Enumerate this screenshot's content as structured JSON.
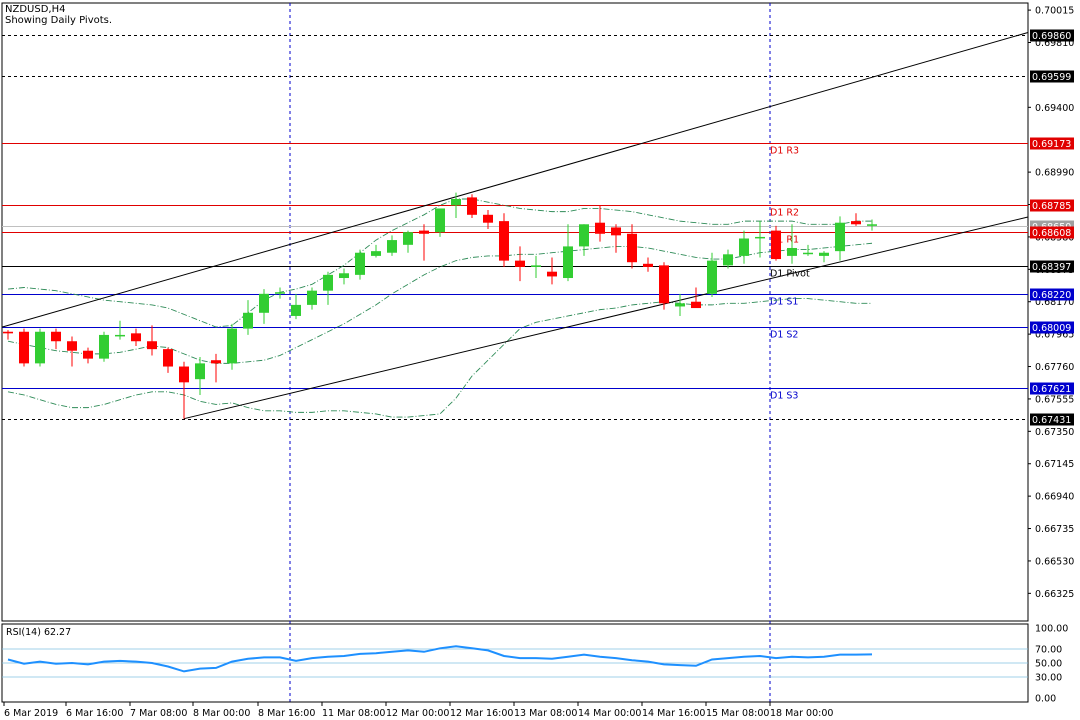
{
  "header": {
    "symbol_line": "NZDUSD,H4",
    "subtitle": "Showing Daily Pivots."
  },
  "rsi_panel": {
    "label": "RSI(14) 62.27",
    "period": 14,
    "value": 62.27,
    "levels": [
      70,
      50,
      30
    ],
    "axis_ticks": [
      "100.00",
      "70.00",
      "50.00",
      "30.00",
      "0.00"
    ],
    "color": "#1e90ff"
  },
  "colors": {
    "bull": "#32cd32",
    "bear": "#ff0000",
    "pivot_resistance": "#e00000",
    "pivot_support": "#0000cd",
    "pivot": "#000000",
    "session_separator": "#0000cd",
    "bollinger": "#2e8b57",
    "grid_text": "#000000"
  },
  "chart_data": {
    "type": "candlestick",
    "symbol": "NZDUSD",
    "timeframe": "H4",
    "ylim": [
      0.6615,
      0.7006
    ],
    "y_ticks": [
      "0.70015",
      "0.69810",
      "0.69400",
      "0.68990",
      "0.68785",
      "0.68580",
      "0.68375",
      "0.68170",
      "0.67965",
      "0.67760",
      "0.67555",
      "0.67350",
      "0.67145",
      "0.66940",
      "0.66735",
      "0.66530",
      "0.66325"
    ],
    "x_ticks": [
      "6 Mar 2019",
      "6 Mar 16:00",
      "7 Mar 08:00",
      "8 Mar 00:00",
      "8 Mar 16:00",
      "11 Mar 08:00",
      "12 Mar 00:00",
      "12 Mar 16:00",
      "13 Mar 08:00",
      "14 Mar 00:00",
      "14 Mar 16:00",
      "15 Mar 08:00",
      "18 Mar 00:00"
    ],
    "candles": [
      [
        0.6798,
        0.6799,
        0.6793,
        0.6797
      ],
      [
        0.6798,
        0.68,
        0.6776,
        0.6778
      ],
      [
        0.6778,
        0.68,
        0.6776,
        0.6798
      ],
      [
        0.6798,
        0.68,
        0.6787,
        0.6792
      ],
      [
        0.6792,
        0.6795,
        0.6776,
        0.6786
      ],
      [
        0.6786,
        0.6788,
        0.6778,
        0.6781
      ],
      [
        0.6781,
        0.6798,
        0.6779,
        0.6796
      ],
      [
        0.6796,
        0.6805,
        0.6793,
        0.6796
      ],
      [
        0.6797,
        0.68,
        0.6789,
        0.6792
      ],
      [
        0.6792,
        0.6802,
        0.6783,
        0.6787
      ],
      [
        0.6787,
        0.6788,
        0.6772,
        0.6776
      ],
      [
        0.6776,
        0.6779,
        0.6743,
        0.6766
      ],
      [
        0.6768,
        0.6782,
        0.6758,
        0.6778
      ],
      [
        0.678,
        0.6784,
        0.6766,
        0.6778
      ],
      [
        0.6778,
        0.6803,
        0.6774,
        0.68
      ],
      [
        0.68,
        0.6818,
        0.6796,
        0.681
      ],
      [
        0.681,
        0.6825,
        0.6803,
        0.6822
      ],
      [
        0.6823,
        0.6826,
        0.6819,
        0.6823
      ],
      [
        0.6808,
        0.6822,
        0.6806,
        0.6815
      ],
      [
        0.6815,
        0.6826,
        0.6812,
        0.6824
      ],
      [
        0.6824,
        0.6836,
        0.6815,
        0.6834
      ],
      [
        0.6832,
        0.6838,
        0.6828,
        0.6835
      ],
      [
        0.6834,
        0.685,
        0.6831,
        0.6848
      ],
      [
        0.6846,
        0.6853,
        0.6845,
        0.6849
      ],
      [
        0.6848,
        0.6859,
        0.6846,
        0.6856
      ],
      [
        0.6853,
        0.6862,
        0.6848,
        0.6861
      ],
      [
        0.6862,
        0.6866,
        0.6843,
        0.686
      ],
      [
        0.6861,
        0.6876,
        0.6858,
        0.6876
      ],
      [
        0.6878,
        0.6886,
        0.687,
        0.6882
      ],
      [
        0.6883,
        0.6885,
        0.687,
        0.6872
      ],
      [
        0.6872,
        0.6875,
        0.6863,
        0.6867
      ],
      [
        0.6868,
        0.6873,
        0.6839,
        0.6843
      ],
      [
        0.6843,
        0.6852,
        0.683,
        0.6839
      ],
      [
        0.6839,
        0.6846,
        0.6832,
        0.684
      ],
      [
        0.6836,
        0.6845,
        0.6828,
        0.6833
      ],
      [
        0.6832,
        0.6866,
        0.683,
        0.6852
      ],
      [
        0.6852,
        0.6866,
        0.6846,
        0.6866
      ],
      [
        0.6867,
        0.6878,
        0.6855,
        0.686
      ],
      [
        0.6864,
        0.6866,
        0.6848,
        0.6859
      ],
      [
        0.686,
        0.6866,
        0.6838,
        0.6842
      ],
      [
        0.6841,
        0.6845,
        0.6836,
        0.6839
      ],
      [
        0.684,
        0.6842,
        0.6812,
        0.6816
      ],
      [
        0.6814,
        0.6822,
        0.6808,
        0.6816
      ],
      [
        0.6817,
        0.6826,
        0.6814,
        0.6813
      ],
      [
        0.6822,
        0.6848,
        0.682,
        0.6843
      ],
      [
        0.684,
        0.685,
        0.6838,
        0.6847
      ],
      [
        0.6846,
        0.6862,
        0.6841,
        0.6857
      ],
      [
        0.6858,
        0.6868,
        0.6845,
        0.6858
      ],
      [
        0.6862,
        0.6865,
        0.6843,
        0.6844
      ],
      [
        0.6846,
        0.6866,
        0.6841,
        0.6851
      ],
      [
        0.6848,
        0.6853,
        0.6846,
        0.6848
      ],
      [
        0.6846,
        0.6849,
        0.6842,
        0.6848
      ],
      [
        0.6849,
        0.6871,
        0.6843,
        0.6867
      ],
      [
        0.6868,
        0.6873,
        0.6865,
        0.6866
      ],
      [
        0.6865,
        0.6869,
        0.6862,
        0.6866
      ]
    ],
    "price_levels": [
      {
        "name": "",
        "price": 0.6986,
        "label": "0.69860",
        "style": "dotted",
        "color": "#000000",
        "tag_bg": "#000000",
        "tag_fg": "#ffffff"
      },
      {
        "name": "",
        "price": 0.69599,
        "label": "0.69599",
        "style": "dotted",
        "color": "#000000",
        "tag_bg": "#000000",
        "tag_fg": "#ffffff"
      },
      {
        "name": "D1 R3",
        "price": 0.69173,
        "label": "0.69173",
        "style": "solid",
        "color": "#e00000",
        "tag_bg": "#e00000",
        "tag_fg": "#ffffff"
      },
      {
        "name": "D1 R2",
        "price": 0.68785,
        "label": "0.68785",
        "style": "solid",
        "color": "#e00000",
        "tag_bg": "#e00000",
        "tag_fg": "#ffffff"
      },
      {
        "name": "",
        "price": 0.6865,
        "label": "0.68650",
        "style": "solid",
        "color": "#c0c0c0",
        "tag_bg": "#a0a0a0",
        "tag_fg": "#ffffff"
      },
      {
        "name": "D1 R1",
        "price": 0.68608,
        "label": "0.68608",
        "style": "solid",
        "color": "#e00000",
        "tag_bg": "#e00000",
        "tag_fg": "#ffffff"
      },
      {
        "name": "D1 Pivot",
        "price": 0.68397,
        "label": "0.68397",
        "style": "solid",
        "color": "#000000",
        "tag_bg": "#000000",
        "tag_fg": "#ffffff"
      },
      {
        "name": "D1 S1",
        "price": 0.6822,
        "label": "0.68220",
        "style": "solid",
        "color": "#0000cd",
        "tag_bg": "#0000cd",
        "tag_fg": "#ffffff"
      },
      {
        "name": "D1 S2",
        "price": 0.68009,
        "label": "0.68009",
        "style": "solid",
        "color": "#0000cd",
        "tag_bg": "#0000cd",
        "tag_fg": "#ffffff"
      },
      {
        "name": "D1 S3",
        "price": 0.67621,
        "label": "0.67621",
        "style": "solid",
        "color": "#0000cd",
        "tag_bg": "#0000cd",
        "tag_fg": "#ffffff"
      },
      {
        "name": "",
        "price": 0.67431,
        "label": "0.67431",
        "style": "dotted",
        "color": "#000000",
        "tag_bg": "#000000",
        "tag_fg": "#ffffff"
      }
    ],
    "channel": {
      "upper": [
        [
          0,
          0.6802
        ],
        [
          54,
          0.6959
        ]
      ],
      "lower": [
        [
          11,
          0.6743
        ],
        [
          54,
          0.6847
        ]
      ]
    },
    "bollinger": {
      "upper": [
        0.6825,
        0.6826,
        0.6825,
        0.6824,
        0.6822,
        0.682,
        0.6818,
        0.6817,
        0.6816,
        0.6815,
        0.6813,
        0.6809,
        0.6805,
        0.6801,
        0.6802,
        0.681,
        0.6818,
        0.6823,
        0.6825,
        0.6828,
        0.6834,
        0.684,
        0.6848,
        0.6856,
        0.6862,
        0.6867,
        0.6872,
        0.6878,
        0.6882,
        0.6882,
        0.688,
        0.6878,
        0.6876,
        0.6875,
        0.6874,
        0.6874,
        0.6876,
        0.6876,
        0.6875,
        0.6874,
        0.6872,
        0.687,
        0.6868,
        0.6867,
        0.6866,
        0.6866,
        0.6868,
        0.6868,
        0.6868,
        0.6868,
        0.6866,
        0.6866,
        0.6866,
        0.6868,
        0.6868
      ],
      "middle": [
        0.6792,
        0.679,
        0.6788,
        0.6786,
        0.6785,
        0.6784,
        0.6784,
        0.6785,
        0.6787,
        0.6789,
        0.6788,
        0.6784,
        0.678,
        0.6778,
        0.6778,
        0.6779,
        0.678,
        0.6783,
        0.6788,
        0.6793,
        0.6798,
        0.6803,
        0.6809,
        0.6815,
        0.6822,
        0.6828,
        0.6834,
        0.6839,
        0.6843,
        0.6845,
        0.6846,
        0.6846,
        0.6847,
        0.6847,
        0.6848,
        0.6849,
        0.685,
        0.6851,
        0.6852,
        0.6852,
        0.6851,
        0.6849,
        0.6847,
        0.6845,
        0.6844,
        0.6844,
        0.6846,
        0.6848,
        0.6849,
        0.685,
        0.685,
        0.6851,
        0.6852,
        0.6853,
        0.6854
      ],
      "lower": [
        0.676,
        0.6758,
        0.6755,
        0.6752,
        0.675,
        0.675,
        0.6752,
        0.6755,
        0.6758,
        0.676,
        0.676,
        0.6758,
        0.6754,
        0.6752,
        0.6753,
        0.675,
        0.6748,
        0.6748,
        0.6747,
        0.6747,
        0.6748,
        0.6748,
        0.6747,
        0.6746,
        0.6744,
        0.6744,
        0.6745,
        0.6746,
        0.6756,
        0.677,
        0.678,
        0.679,
        0.68,
        0.6804,
        0.6806,
        0.6808,
        0.681,
        0.6812,
        0.6813,
        0.6815,
        0.6816,
        0.6817,
        0.6816,
        0.6815,
        0.6815,
        0.6816,
        0.6816,
        0.6817,
        0.6818,
        0.6819,
        0.6819,
        0.6818,
        0.6817,
        0.6816,
        0.6816
      ]
    },
    "rsi_values": [
      55,
      49,
      52,
      49,
      50,
      48,
      52,
      53,
      52,
      50,
      45,
      38,
      42,
      43,
      52,
      56,
      58,
      58,
      53,
      57,
      59,
      60,
      63,
      64,
      66,
      68,
      66,
      71,
      74,
      71,
      68,
      60,
      57,
      57,
      56,
      59,
      62,
      59,
      57,
      54,
      52,
      48,
      47,
      46,
      55,
      57,
      59,
      60,
      57,
      59,
      58,
      59,
      62,
      62,
      62.27
    ]
  }
}
